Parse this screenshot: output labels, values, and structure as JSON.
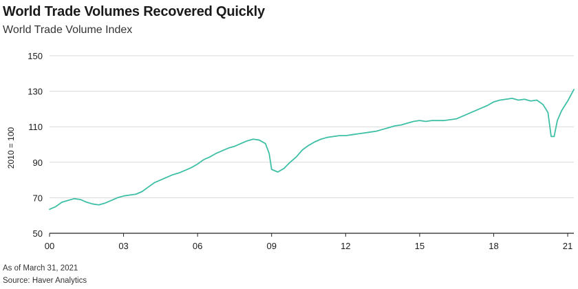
{
  "title": "World Trade Volumes Recovered Quickly",
  "subtitle": "World Trade Volume Index",
  "footnote": "As of March 31, 2021",
  "source": "Source: Haver Analytics",
  "colors": {
    "line": "#3dbfa6",
    "grid": "#d9d9d9",
    "axis": "#222222"
  },
  "chart_data": {
    "type": "line",
    "title": "World Trade Volumes Recovered Quickly",
    "subtitle": "World Trade Volume Index",
    "xlabel": "",
    "ylabel": "2010 = 100",
    "xlim": [
      2000.0,
      2021.25
    ],
    "ylim": [
      50,
      150
    ],
    "x_ticks": [
      {
        "value": 2000,
        "label": "00"
      },
      {
        "value": 2003,
        "label": "03"
      },
      {
        "value": 2006,
        "label": "06"
      },
      {
        "value": 2009,
        "label": "09"
      },
      {
        "value": 2012,
        "label": "12"
      },
      {
        "value": 2015,
        "label": "15"
      },
      {
        "value": 2018,
        "label": "18"
      },
      {
        "value": 2021,
        "label": "21"
      }
    ],
    "y_ticks": [
      50,
      70,
      90,
      110,
      130,
      150
    ],
    "grid": "horizontal",
    "series": [
      {
        "values": [
          [
            2000.0,
            63.5
          ],
          [
            2000.25,
            65.0
          ],
          [
            2000.5,
            67.5
          ],
          [
            2000.75,
            68.5
          ],
          [
            2001.0,
            69.5
          ],
          [
            2001.25,
            69.0
          ],
          [
            2001.5,
            67.5
          ],
          [
            2001.75,
            66.5
          ],
          [
            2002.0,
            66.0
          ],
          [
            2002.25,
            67.0
          ],
          [
            2002.5,
            68.5
          ],
          [
            2002.75,
            70.0
          ],
          [
            2003.0,
            71.0
          ],
          [
            2003.25,
            71.5
          ],
          [
            2003.5,
            72.0
          ],
          [
            2003.75,
            73.5
          ],
          [
            2004.0,
            76.0
          ],
          [
            2004.25,
            78.5
          ],
          [
            2004.5,
            80.0
          ],
          [
            2004.75,
            81.5
          ],
          [
            2005.0,
            83.0
          ],
          [
            2005.25,
            84.0
          ],
          [
            2005.5,
            85.5
          ],
          [
            2005.75,
            87.0
          ],
          [
            2006.0,
            89.0
          ],
          [
            2006.25,
            91.5
          ],
          [
            2006.5,
            93.0
          ],
          [
            2006.75,
            95.0
          ],
          [
            2007.0,
            96.5
          ],
          [
            2007.25,
            98.0
          ],
          [
            2007.5,
            99.0
          ],
          [
            2007.75,
            100.5
          ],
          [
            2008.0,
            102.0
          ],
          [
            2008.25,
            103.0
          ],
          [
            2008.5,
            102.5
          ],
          [
            2008.75,
            100.5
          ],
          [
            2008.9,
            95.0
          ],
          [
            2009.0,
            86.0
          ],
          [
            2009.25,
            84.5
          ],
          [
            2009.5,
            86.5
          ],
          [
            2009.75,
            90.0
          ],
          [
            2010.0,
            93.0
          ],
          [
            2010.25,
            97.0
          ],
          [
            2010.5,
            99.5
          ],
          [
            2010.75,
            101.5
          ],
          [
            2011.0,
            103.0
          ],
          [
            2011.25,
            104.0
          ],
          [
            2011.5,
            104.5
          ],
          [
            2011.75,
            105.0
          ],
          [
            2012.0,
            105.0
          ],
          [
            2012.25,
            105.5
          ],
          [
            2012.5,
            106.0
          ],
          [
            2012.75,
            106.5
          ],
          [
            2013.0,
            107.0
          ],
          [
            2013.25,
            107.5
          ],
          [
            2013.5,
            108.5
          ],
          [
            2013.75,
            109.5
          ],
          [
            2014.0,
            110.5
          ],
          [
            2014.25,
            111.0
          ],
          [
            2014.5,
            112.0
          ],
          [
            2014.75,
            113.0
          ],
          [
            2015.0,
            113.5
          ],
          [
            2015.25,
            113.0
          ],
          [
            2015.5,
            113.5
          ],
          [
            2015.75,
            113.5
          ],
          [
            2016.0,
            113.5
          ],
          [
            2016.25,
            114.0
          ],
          [
            2016.5,
            114.5
          ],
          [
            2016.75,
            116.0
          ],
          [
            2017.0,
            117.5
          ],
          [
            2017.25,
            119.0
          ],
          [
            2017.5,
            120.5
          ],
          [
            2017.75,
            122.0
          ],
          [
            2018.0,
            124.0
          ],
          [
            2018.25,
            125.0
          ],
          [
            2018.5,
            125.5
          ],
          [
            2018.75,
            126.0
          ],
          [
            2019.0,
            125.0
          ],
          [
            2019.25,
            125.5
          ],
          [
            2019.5,
            124.5
          ],
          [
            2019.75,
            125.0
          ],
          [
            2020.0,
            122.5
          ],
          [
            2020.2,
            118.0
          ],
          [
            2020.33,
            104.5
          ],
          [
            2020.45,
            104.5
          ],
          [
            2020.58,
            113.5
          ],
          [
            2020.75,
            119.0
          ],
          [
            2021.0,
            124.5
          ],
          [
            2021.25,
            131.0
          ]
        ]
      }
    ]
  }
}
